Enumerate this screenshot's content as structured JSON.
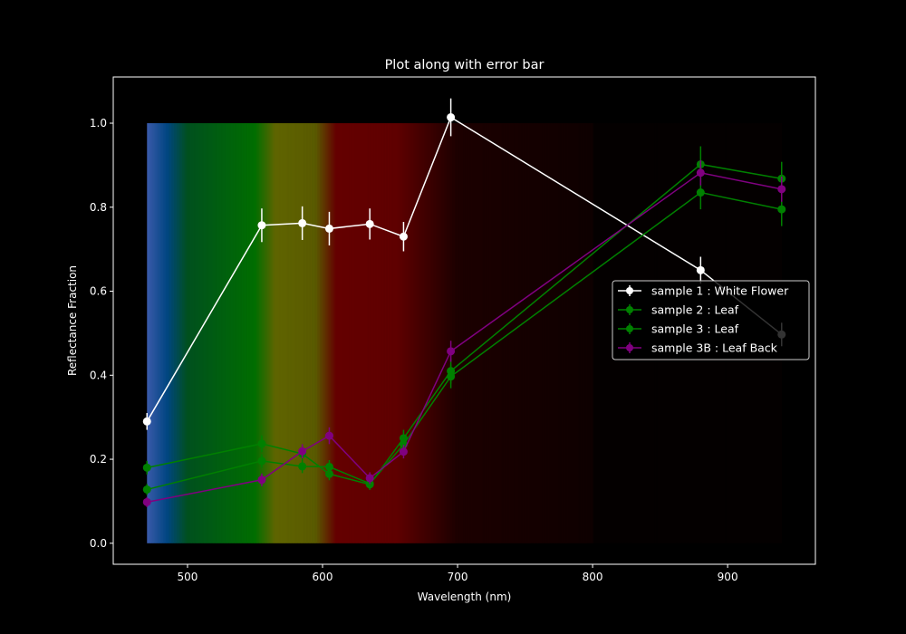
{
  "chart_data": {
    "type": "line",
    "title": "Plot along with error bar",
    "xlabel": "Wavelength (nm)",
    "ylabel": "Reflectance Fraction",
    "xlim": [
      445,
      965
    ],
    "ylim": [
      -0.05,
      1.11
    ],
    "xticks": [
      500,
      600,
      700,
      800,
      900
    ],
    "yticks": [
      0.0,
      0.2,
      0.4,
      0.6,
      0.8,
      1.0
    ],
    "xtick_labels": [
      "500",
      "600",
      "700",
      "800",
      "900"
    ],
    "ytick_labels": [
      "0.0",
      "0.2",
      "0.4",
      "0.6",
      "0.8",
      "1.0"
    ],
    "grid": false,
    "legend_position": "center-right",
    "background": "#000000",
    "spectrum_band": {
      "x_range": [
        470,
        940
      ],
      "y_range": [
        0.0,
        1.0
      ]
    },
    "x": [
      470,
      555,
      585,
      605,
      635,
      660,
      695,
      880,
      940
    ],
    "series": [
      {
        "name": "sample 1 : White Flower",
        "color": "#ffffff",
        "values": [
          0.29,
          0.757,
          0.762,
          0.749,
          0.76,
          0.73,
          1.014,
          0.65,
          0.497
        ],
        "errors": [
          0.02,
          0.04,
          0.04,
          0.04,
          0.037,
          0.035,
          0.045,
          0.032,
          0.028
        ]
      },
      {
        "name": "sample 2 : Leaf",
        "color": "#008000",
        "values": [
          0.18,
          0.237,
          0.213,
          0.165,
          0.14,
          0.25,
          0.41,
          0.902,
          0.868
        ],
        "errors": [
          0.016,
          0.02,
          0.018,
          0.015,
          0.013,
          0.02,
          0.03,
          0.043,
          0.04
        ]
      },
      {
        "name": "sample 3 : Leaf",
        "color": "#008000",
        "values": [
          0.128,
          0.196,
          0.183,
          0.182,
          0.142,
          0.235,
          0.397,
          0.835,
          0.795
        ],
        "errors": [
          0.013,
          0.016,
          0.016,
          0.016,
          0.013,
          0.018,
          0.028,
          0.04,
          0.04
        ]
      },
      {
        "name": "sample 3B : Leaf Back",
        "color": "#800080",
        "values": [
          0.098,
          0.151,
          0.219,
          0.256,
          0.155,
          0.218,
          0.457,
          0.882,
          0.843
        ],
        "errors": [
          0.012,
          0.015,
          0.017,
          0.02,
          0.014,
          0.016,
          0.025,
          0.03,
          0.03
        ]
      }
    ]
  }
}
